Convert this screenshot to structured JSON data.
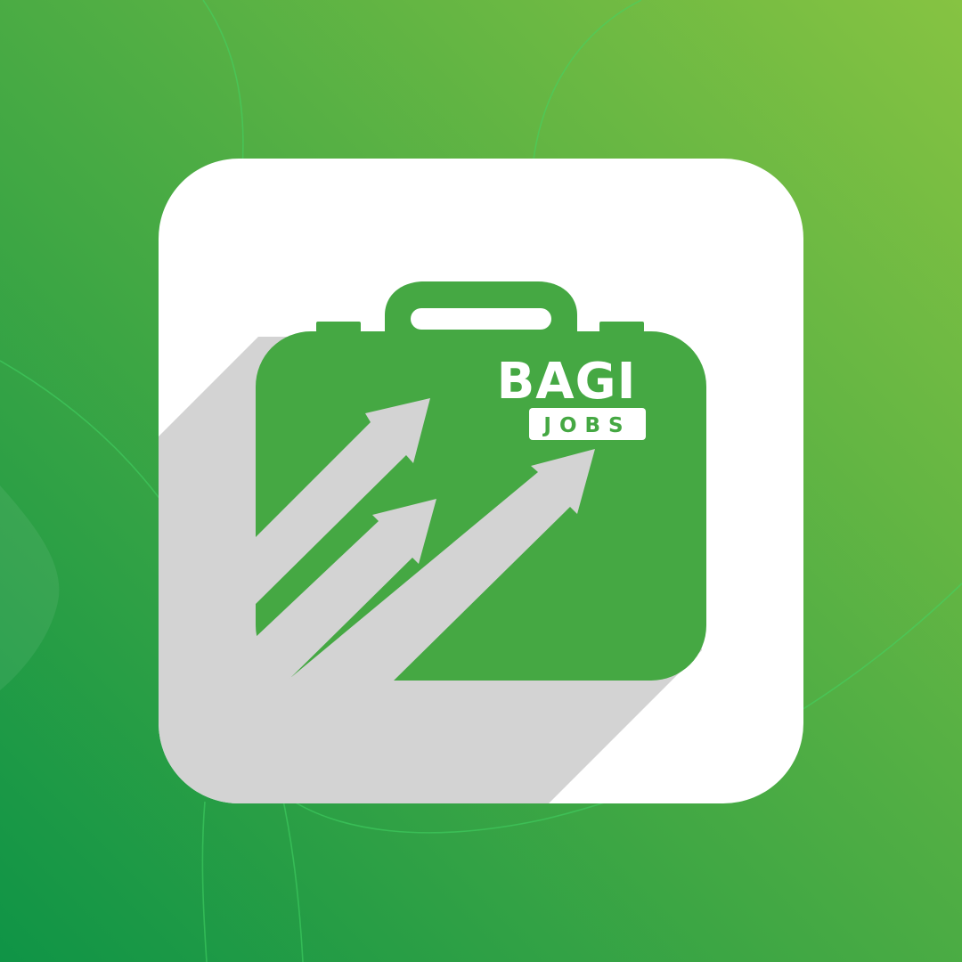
{
  "logo": {
    "wordmark_top": "BAGI",
    "wordmark_bottom": "JOBS"
  },
  "colors": {
    "background_light": "#86c342",
    "background_dark": "#0f9446",
    "background_curve": "#42d564",
    "tile": "#ffffff",
    "long_shadow": "#d3d3d3",
    "briefcase": "#45a843"
  },
  "icons": {
    "app_tile": "app-tile",
    "briefcase": "briefcase-icon",
    "arrows": "growth-arrows-icon"
  }
}
